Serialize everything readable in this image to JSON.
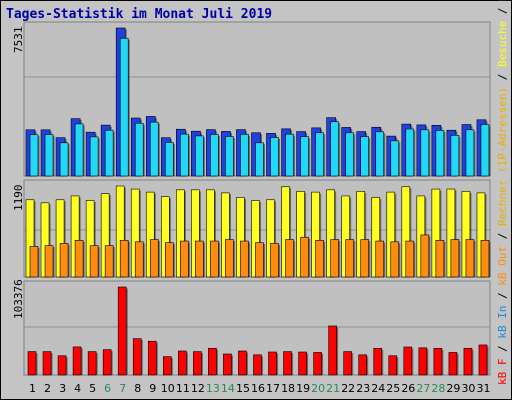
{
  "page": {
    "title": "Tages-Statistik im Monat Juli 2019",
    "colors": {
      "frame_bg": "#c4c4c4",
      "title": "#0000a8",
      "hits_back": "#2040e0",
      "files_front": "#22d8f8",
      "visits_back": "#ffff20",
      "kb_in_front": "#ff8c10",
      "kb_f": "#ff0000",
      "weekday_label": "#000000",
      "weekend_label": "#2a8a5a"
    }
  },
  "chart_data": [
    {
      "type": "bar",
      "panel": "top",
      "max_label": "7531",
      "ylim": [
        0,
        7531
      ],
      "categories": [
        "1",
        "2",
        "3",
        "4",
        "5",
        "6",
        "7",
        "8",
        "9",
        "10",
        "11",
        "12",
        "13",
        "14",
        "15",
        "16",
        "17",
        "18",
        "19",
        "20",
        "21",
        "22",
        "23",
        "24",
        "25",
        "26",
        "27",
        "28",
        "29",
        "30",
        "31"
      ],
      "series": [
        {
          "name": "Anfragen",
          "color": "#2040e0",
          "values": [
            2350,
            2350,
            1950,
            2920,
            2230,
            2590,
            7531,
            2950,
            3030,
            1950,
            2380,
            2280,
            2360,
            2270,
            2360,
            2200,
            2170,
            2400,
            2260,
            2450,
            2970,
            2470,
            2260,
            2480,
            2030,
            2640,
            2600,
            2580,
            2330,
            2620,
            2860
          ]
        },
        {
          "name": "Dateien",
          "color": "#22d8f8",
          "values": [
            2100,
            2110,
            1690,
            2650,
            1990,
            2330,
            7010,
            2680,
            2740,
            1710,
            2130,
            2040,
            2110,
            2010,
            2120,
            1690,
            1960,
            2130,
            2000,
            2200,
            2760,
            2200,
            2000,
            2250,
            1790,
            2390,
            2350,
            2320,
            2070,
            2350,
            2620
          ]
        }
      ]
    },
    {
      "type": "bar",
      "panel": "middle",
      "max_label": "1190",
      "ylim": [
        0,
        1190
      ],
      "categories": [
        "1",
        "2",
        "3",
        "4",
        "5",
        "6",
        "7",
        "8",
        "9",
        "10",
        "11",
        "12",
        "13",
        "14",
        "15",
        "16",
        "17",
        "18",
        "19",
        "20",
        "21",
        "22",
        "23",
        "24",
        "25",
        "26",
        "27",
        "28",
        "29",
        "30",
        "31"
      ],
      "series": [
        {
          "name": "Rechner (IP-Adressen)",
          "color": "#ffff20",
          "values": [
            1010,
            970,
            1010,
            1060,
            1000,
            1090,
            1190,
            1150,
            1110,
            1050,
            1140,
            1140,
            1140,
            1100,
            1040,
            1000,
            1010,
            1180,
            1120,
            1110,
            1140,
            1060,
            1120,
            1040,
            1110,
            1180,
            1060,
            1150,
            1150,
            1120,
            1100
          ]
        },
        {
          "name": "kB Out",
          "color": "#ff8c10",
          "values": [
            400,
            410,
            440,
            480,
            410,
            410,
            480,
            460,
            490,
            450,
            470,
            470,
            470,
            490,
            470,
            450,
            440,
            490,
            520,
            480,
            490,
            490,
            490,
            470,
            460,
            470,
            550,
            480,
            490,
            490,
            480
          ]
        }
      ]
    },
    {
      "type": "bar",
      "panel": "bottom",
      "max_label": "103376",
      "ylim": [
        0,
        103376
      ],
      "categories": [
        "1",
        "2",
        "3",
        "4",
        "5",
        "6",
        "7",
        "8",
        "9",
        "10",
        "11",
        "12",
        "13",
        "14",
        "15",
        "16",
        "17",
        "18",
        "19",
        "20",
        "21",
        "22",
        "23",
        "24",
        "25",
        "26",
        "27",
        "28",
        "29",
        "30",
        "31"
      ],
      "series": [
        {
          "name": "kB In",
          "color": "#1e8ad8",
          "values": [
            0,
            0,
            0,
            0,
            0,
            0,
            0,
            0,
            0,
            0,
            0,
            0,
            0,
            0,
            0,
            0,
            0,
            0,
            0,
            0,
            0,
            0,
            0,
            0,
            0,
            0,
            0,
            0,
            0,
            0,
            0
          ]
        },
        {
          "name": "kB F",
          "color": "#ff0000",
          "values": [
            27500,
            27500,
            22600,
            33000,
            27500,
            29800,
            103376,
            42700,
            39700,
            21600,
            28200,
            27500,
            31400,
            24700,
            28200,
            23700,
            27000,
            27500,
            27000,
            26500,
            57600,
            27500,
            23700,
            31400,
            22600,
            32900,
            31900,
            31400,
            26500,
            31400,
            35300
          ]
        }
      ]
    }
  ],
  "x_axis": {
    "labels": [
      "1",
      "2",
      "3",
      "4",
      "5",
      "6",
      "7",
      "8",
      "9",
      "10",
      "11",
      "12",
      "13",
      "14",
      "15",
      "16",
      "17",
      "18",
      "19",
      "20",
      "21",
      "22",
      "23",
      "24",
      "25",
      "26",
      "27",
      "28",
      "29",
      "30",
      "31"
    ],
    "weekend_days": [
      6,
      7,
      13,
      14,
      20,
      21,
      27,
      28
    ]
  },
  "legend": {
    "parts": [
      {
        "text": "kB F",
        "color": "#ff0000"
      },
      {
        "text": " / ",
        "color": "#000000"
      },
      {
        "text": "kB In",
        "color": "#1e8ad8"
      },
      {
        "text": " / ",
        "color": "#000000"
      },
      {
        "text": "kB Out",
        "color": "#ff8c10"
      },
      {
        "text": " / ",
        "color": "#000000"
      },
      {
        "text": "Rechner (IP-Adressen)",
        "color": "#e8b000"
      },
      {
        "text": " / ",
        "color": "#000000"
      },
      {
        "text": "Besuche",
        "color": "#ffff20"
      },
      {
        "text": " / ",
        "color": "#000000"
      },
      {
        "text": "Dateien",
        "color": "#1ec8f0"
      },
      {
        "text": " / ",
        "color": "#000000"
      },
      {
        "text": "Anfragen",
        "color": "#2a8a5a"
      }
    ]
  }
}
